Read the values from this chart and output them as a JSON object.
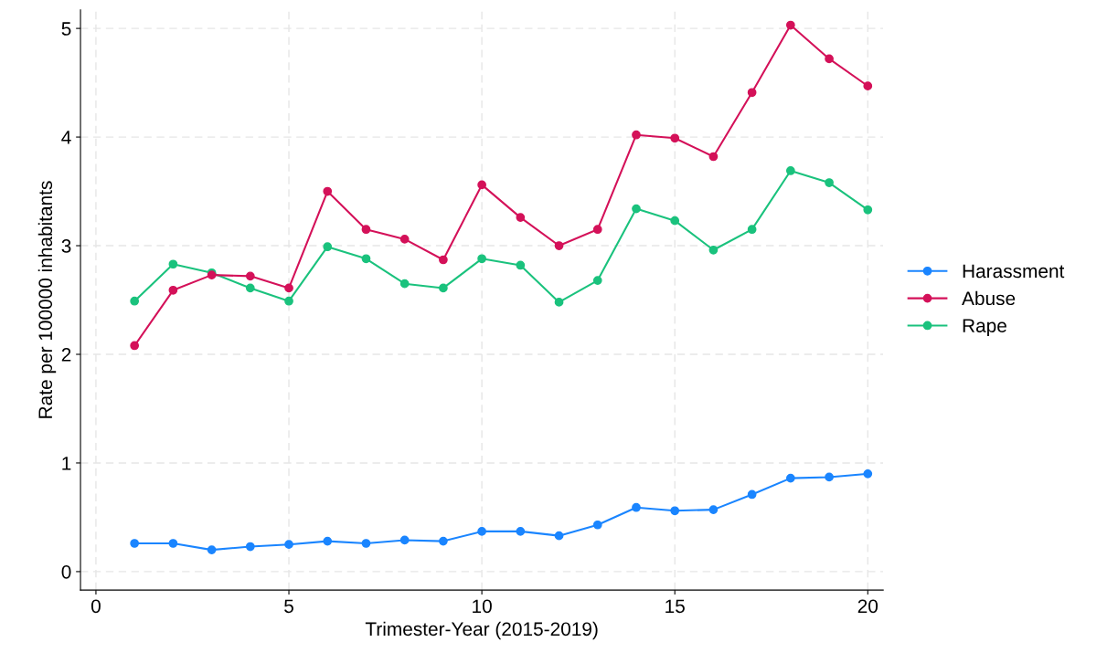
{
  "chart_data": {
    "type": "line",
    "xlabel": "Trimester-Year (2015-2019)",
    "ylabel": "Rate per 100000 inhabitants",
    "x": [
      1,
      2,
      3,
      4,
      5,
      6,
      7,
      8,
      9,
      10,
      11,
      12,
      13,
      14,
      15,
      16,
      17,
      18,
      19,
      20
    ],
    "series": [
      {
        "name": "Harassment",
        "color": "#1a85ff",
        "values": [
          0.26,
          0.26,
          0.2,
          0.23,
          0.25,
          0.28,
          0.26,
          0.29,
          0.28,
          0.37,
          0.37,
          0.33,
          0.43,
          0.59,
          0.56,
          0.57,
          0.71,
          0.86,
          0.87,
          0.9
        ]
      },
      {
        "name": "Abuse",
        "color": "#d41159",
        "values": [
          2.08,
          2.59,
          2.73,
          2.72,
          2.61,
          3.5,
          3.15,
          3.06,
          2.87,
          3.56,
          3.26,
          3.0,
          3.15,
          4.02,
          3.99,
          3.82,
          4.41,
          5.03,
          4.72,
          4.47
        ]
      },
      {
        "name": "Rape",
        "color": "#1ac27d",
        "values": [
          2.49,
          2.83,
          2.75,
          2.61,
          2.49,
          2.99,
          2.88,
          2.65,
          2.61,
          2.88,
          2.82,
          2.48,
          2.68,
          3.34,
          3.23,
          2.96,
          3.15,
          3.69,
          3.58,
          3.33
        ]
      }
    ],
    "xlim": [
      -0.4,
      20.4
    ],
    "ylim": [
      -0.17,
      5.17
    ],
    "xticks": [
      0,
      5,
      10,
      15,
      20
    ],
    "yticks": [
      0,
      1,
      2,
      3,
      4,
      5
    ],
    "grid": true,
    "legend": "right",
    "marker": "circle",
    "line_style": "solid"
  }
}
